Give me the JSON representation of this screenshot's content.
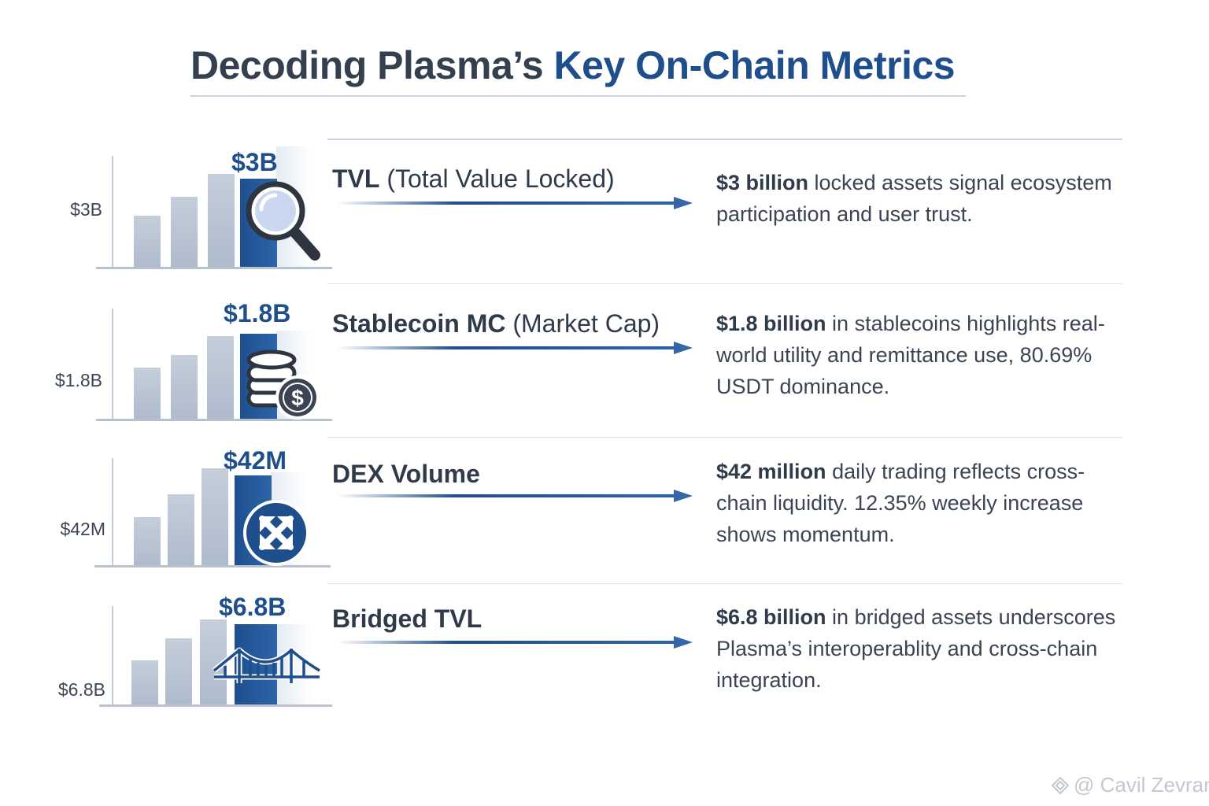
{
  "title": {
    "part1": "Decoding Plasma’s ",
    "part2": "Key On-Chain Metrics"
  },
  "colors": {
    "accent": "#1f4e8c",
    "bar": "#b9c4d2",
    "text": "#2f3a4a"
  },
  "rows": [
    {
      "axis_label": "$3B",
      "value": "$3B",
      "metric_bold": "TVL",
      "metric_sub": " (Total Value Locked)",
      "desc_bold": "$3 billion",
      "desc_text": " locked assets signal ecosystem participation and user trust.",
      "icon": "magnifier-icon"
    },
    {
      "axis_label": "$1.8B",
      "value": "$1.8B",
      "metric_bold": "Stablecoin MC",
      "metric_sub": " (Market Cap)",
      "desc_bold": "$1.8 billion",
      "desc_text": " in stablecoins highlights real-world utility and remittance use, 80.69% USDT dominance.",
      "icon": "coins-dollar-icon"
    },
    {
      "axis_label": "$42M",
      "value": "$42M",
      "metric_bold": "DEX Volume",
      "metric_sub": "",
      "desc_bold": "$42 million",
      "desc_text": " daily trading reflects cross-chain liquidity. 12.35% weekly increase shows momentum.",
      "icon": "swap-arrows-icon"
    },
    {
      "axis_label": "$6.8B",
      "value": "$6.8B",
      "metric_bold": "Bridged TVL",
      "metric_sub": "",
      "desc_bold": "$6.8 billion",
      "desc_text": " in bridged assets underscores Plasma’s interoperablity and cross-chain integration.",
      "icon": "bridge-icon"
    }
  ],
  "watermark": "@ Cavil Zevran"
}
